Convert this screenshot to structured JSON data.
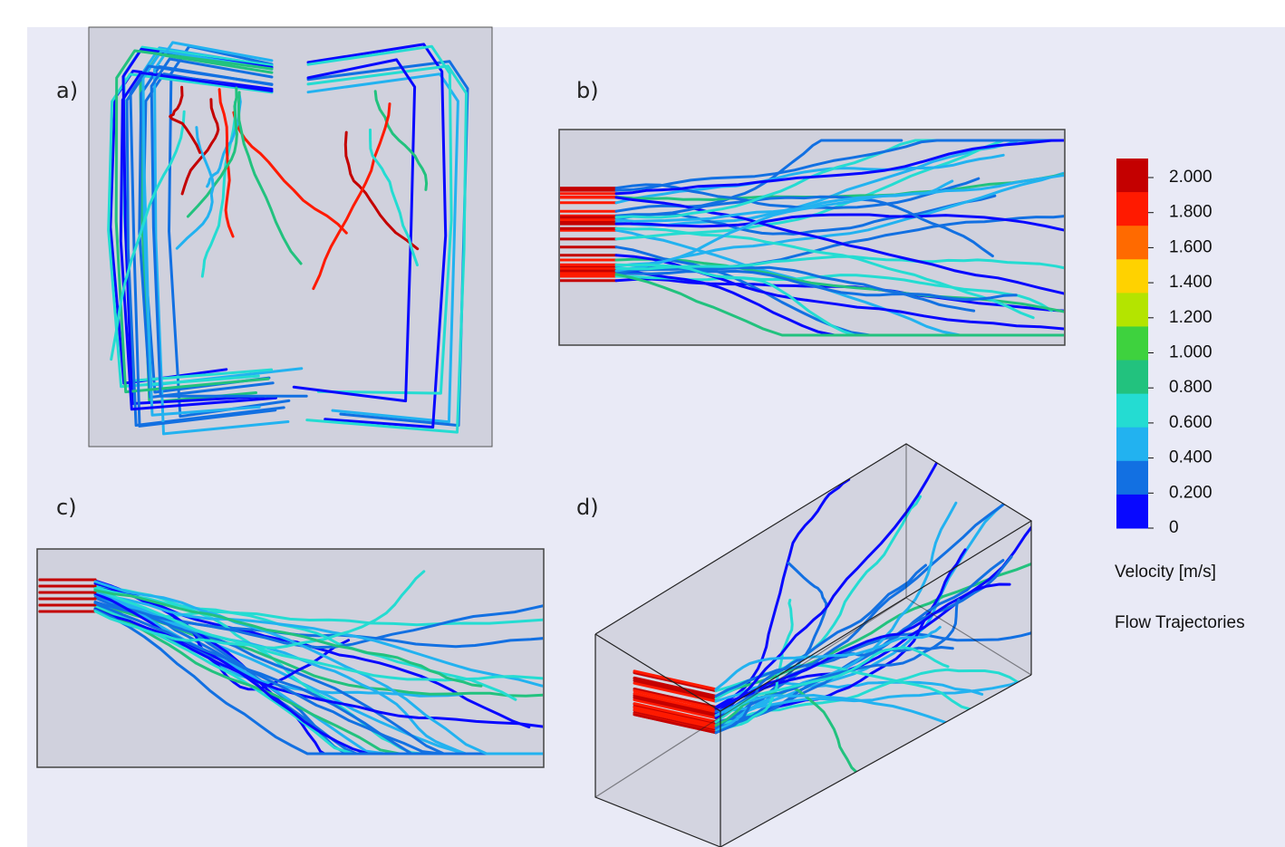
{
  "panels": [
    {
      "label": "a)"
    },
    {
      "label": "b)"
    },
    {
      "label": "c)"
    },
    {
      "label": "d)"
    }
  ],
  "legend": {
    "ticks": [
      "2.000",
      "1.800",
      "1.600",
      "1.400",
      "1.200",
      "1.000",
      "0.800",
      "0.600",
      "0.400",
      "0.200",
      "0"
    ],
    "colors": [
      "#c40000",
      "#ff1a00",
      "#ff6a00",
      "#ffd200",
      "#b4e400",
      "#3ed23e",
      "#22c27e",
      "#24dcd2",
      "#22b2f0",
      "#1270e2",
      "#0808ff"
    ],
    "quantity": "Velocity [m/s]",
    "caption": "Flow Trajectories"
  }
}
